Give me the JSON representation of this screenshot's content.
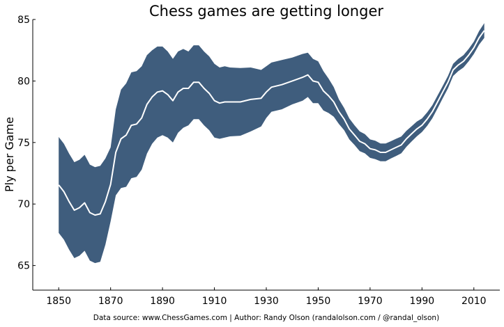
{
  "chart_data": {
    "type": "area",
    "title": "Chess games are getting longer",
    "xlabel": "",
    "ylabel": "Ply per Game",
    "xlim": [
      1840,
      2020
    ],
    "ylim": [
      63,
      85
    ],
    "xticks": [
      1850,
      1870,
      1890,
      1910,
      1930,
      1950,
      1970,
      1990,
      2010
    ],
    "yticks": [
      65,
      70,
      75,
      80,
      85
    ],
    "grid": false,
    "colors": {
      "band": "#3f5d7d",
      "line": "#ffffff"
    },
    "x": [
      1850,
      1852,
      1854,
      1856,
      1858,
      1860,
      1862,
      1864,
      1866,
      1868,
      1870,
      1872,
      1874,
      1876,
      1878,
      1880,
      1882,
      1884,
      1886,
      1888,
      1890,
      1892,
      1894,
      1896,
      1898,
      1900,
      1902,
      1904,
      1906,
      1908,
      1910,
      1912,
      1914,
      1916,
      1920,
      1924,
      1928,
      1930,
      1932,
      1936,
      1940,
      1944,
      1946,
      1948,
      1950,
      1952,
      1954,
      1956,
      1958,
      1960,
      1962,
      1964,
      1966,
      1968,
      1970,
      1972,
      1974,
      1976,
      1978,
      1980,
      1982,
      1984,
      1986,
      1988,
      1990,
      1992,
      1994,
      1996,
      1998,
      2000,
      2002,
      2004,
      2006,
      2008,
      2010,
      2012,
      2014
    ],
    "mean": [
      71.55,
      71.0,
      70.2,
      69.5,
      69.7,
      70.1,
      69.3,
      69.1,
      69.2,
      70.2,
      71.6,
      74.2,
      75.3,
      75.6,
      76.4,
      76.5,
      77.0,
      78.1,
      78.7,
      79.1,
      79.2,
      78.9,
      78.4,
      79.1,
      79.4,
      79.4,
      79.9,
      79.9,
      79.4,
      79.0,
      78.4,
      78.2,
      78.3,
      78.3,
      78.3,
      78.5,
      78.6,
      79.1,
      79.5,
      79.7,
      80.0,
      80.3,
      80.5,
      80.0,
      79.9,
      79.2,
      78.8,
      78.3,
      77.5,
      76.9,
      76.1,
      75.6,
      75.1,
      74.9,
      74.5,
      74.4,
      74.2,
      74.2,
      74.4,
      74.6,
      74.8,
      75.3,
      75.7,
      76.1,
      76.4,
      76.9,
      77.5,
      78.3,
      79.1,
      79.9,
      80.9,
      81.3,
      81.6,
      82.1,
      82.7,
      83.5,
      84.1
    ],
    "band_plus_minus": [
      3.9,
      3.9,
      3.9,
      3.9,
      3.9,
      3.9,
      3.9,
      3.9,
      3.9,
      3.5,
      3.0,
      3.5,
      4.0,
      4.2,
      4.3,
      4.3,
      4.2,
      4.0,
      3.8,
      3.7,
      3.6,
      3.5,
      3.4,
      3.3,
      3.2,
      3.0,
      3.0,
      3.0,
      3.0,
      3.0,
      3.0,
      2.9,
      2.9,
      2.8,
      2.75,
      2.6,
      2.3,
      2.1,
      2.0,
      2.0,
      1.9,
      1.9,
      1.8,
      1.8,
      1.7,
      1.6,
      1.4,
      1.2,
      1.0,
      0.9,
      0.85,
      0.8,
      0.8,
      0.78,
      0.75,
      0.75,
      0.72,
      0.72,
      0.7,
      0.7,
      0.68,
      0.65,
      0.62,
      0.6,
      0.55,
      0.55,
      0.53,
      0.52,
      0.5,
      0.5,
      0.5,
      0.5,
      0.5,
      0.5,
      0.5,
      0.55,
      0.6
    ]
  },
  "footer": "Data source: www.ChessGames.com | Author: Randy Olson (randalolson.com / @randal_olson)"
}
